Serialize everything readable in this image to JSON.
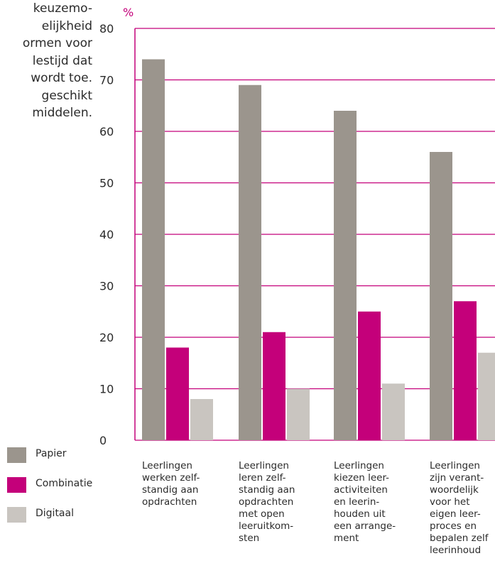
{
  "text_block": {
    "lines": [
      "keuzemo-",
      "elijkheid",
      "ormen voor",
      "lestijd dat",
      "wordt toe.",
      "geschikt",
      "middelen."
    ]
  },
  "colors": {
    "accent": "#c4007a",
    "papier": "#9b958d",
    "combinatie": "#c4007a",
    "digitaal": "#c9c5c0"
  },
  "chart_data": {
    "type": "bar",
    "ylabel": "%",
    "ylim": [
      0,
      80
    ],
    "yticks": [
      0,
      10,
      20,
      30,
      40,
      50,
      60,
      70,
      80
    ],
    "grid": true,
    "legend_position": "bottom-left",
    "categories": [
      [
        "Leerlingen",
        "werken zelf-",
        "standig aan",
        "opdrachten"
      ],
      [
        "Leerlingen",
        "leren zelf-",
        "standig aan",
        "opdrachten",
        "met open",
        "leeruitkom-",
        "sten"
      ],
      [
        "Leerlingen",
        "kiezen leer-",
        "activiteiten",
        "en leerin-",
        "houden uit",
        "een arrange-",
        "ment"
      ],
      [
        "Leerlingen",
        "zijn verant-",
        "woordelijk",
        "voor het",
        "eigen leer-",
        "proces en",
        "bepalen zelf",
        "leerinhoud"
      ]
    ],
    "series": [
      {
        "name": "Papier",
        "color": "#9b958d",
        "values": [
          74,
          69,
          64,
          56
        ]
      },
      {
        "name": "Combinatie",
        "color": "#c4007a",
        "values": [
          18,
          21,
          25,
          27
        ]
      },
      {
        "name": "Digitaal",
        "color": "#c9c5c0",
        "values": [
          8,
          10,
          11,
          17
        ]
      }
    ]
  }
}
